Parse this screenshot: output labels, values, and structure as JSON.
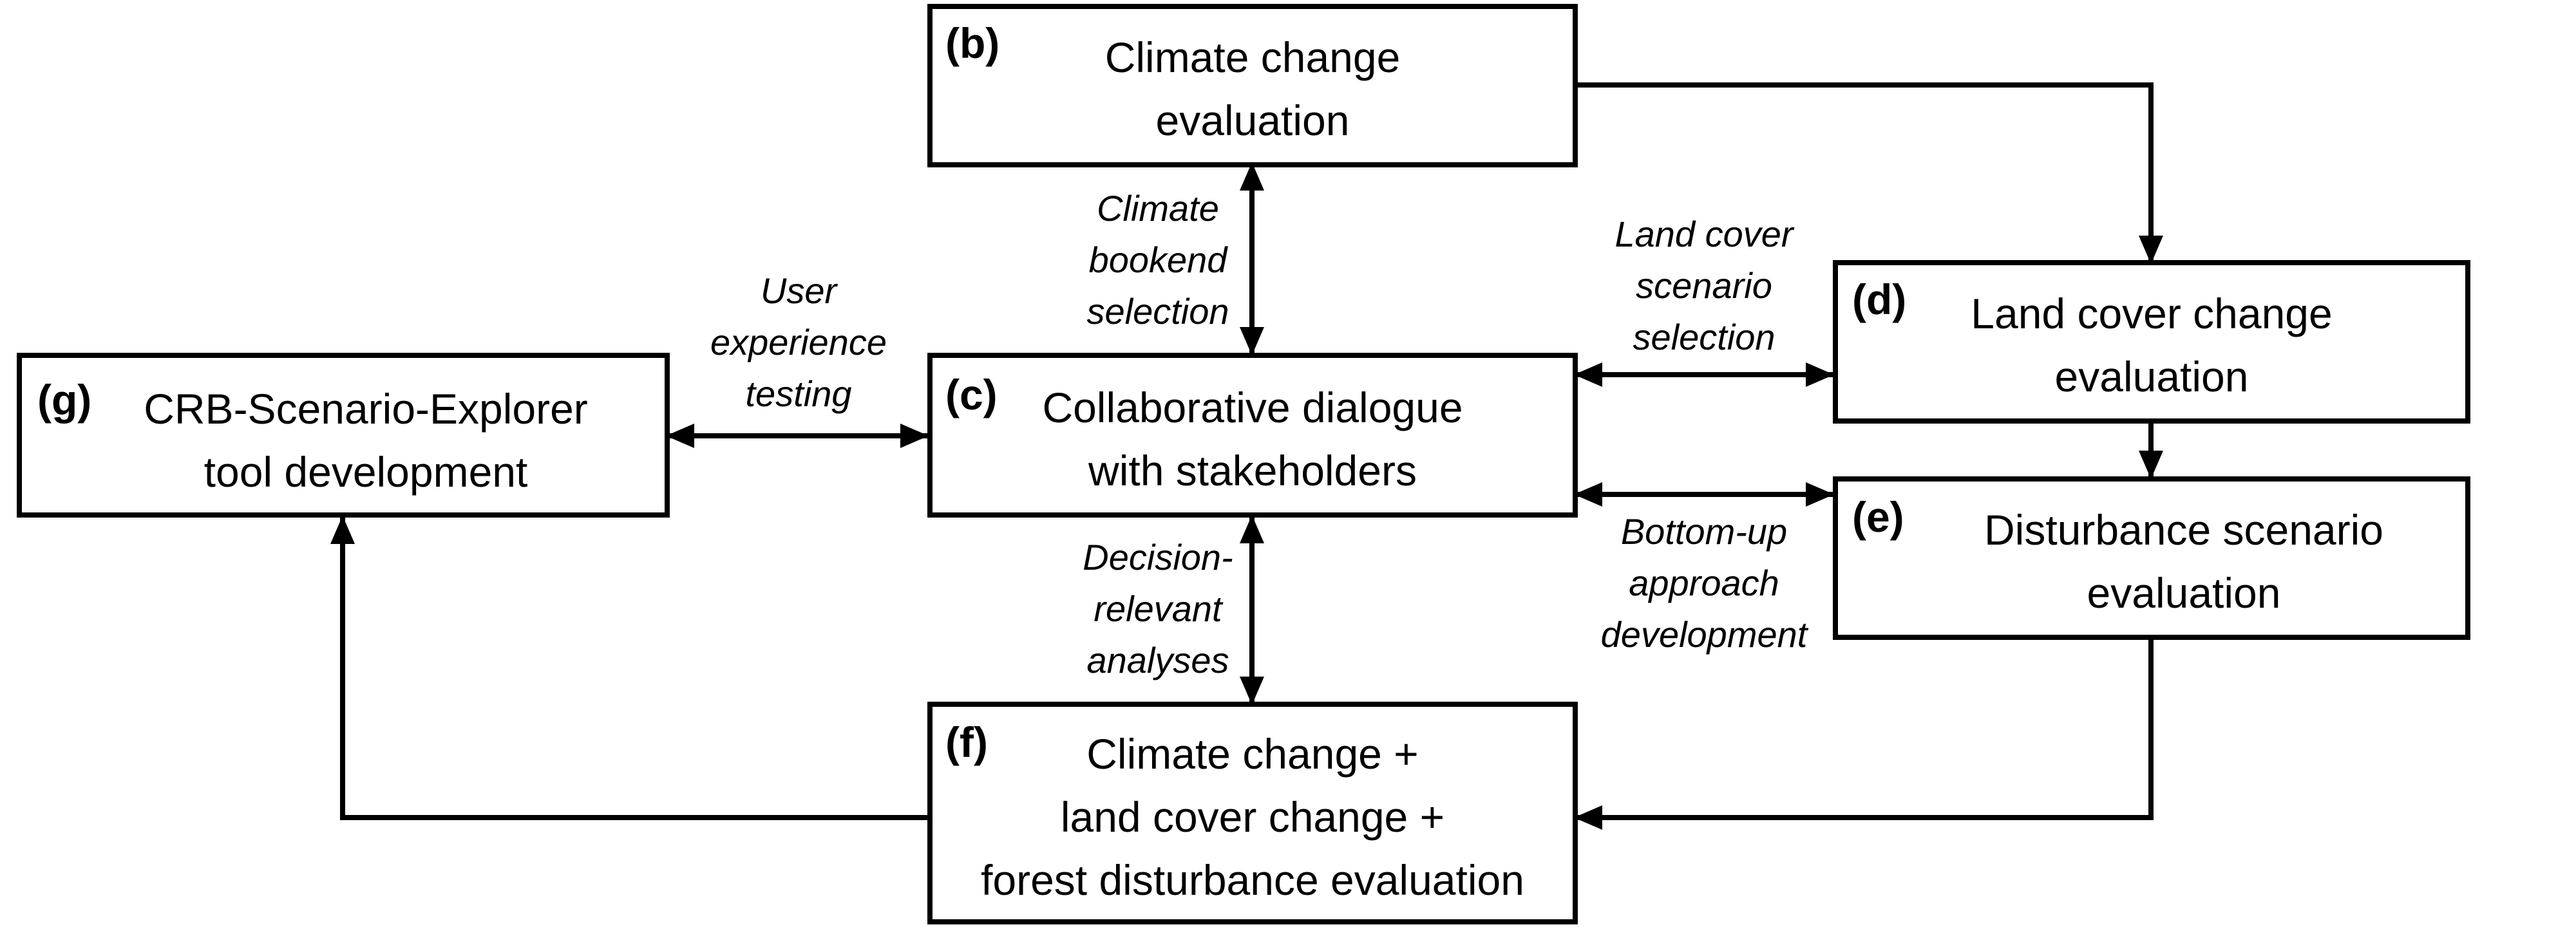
{
  "boxes": {
    "b": {
      "letter": "(b)",
      "lines": [
        "Climate change",
        "evaluation"
      ]
    },
    "c": {
      "letter": "(c)",
      "lines": [
        "Collaborative dialogue",
        "with stakeholders"
      ]
    },
    "d": {
      "letter": "(d)",
      "lines": [
        "Land cover change",
        "evaluation"
      ]
    },
    "e": {
      "letter": "(e)",
      "lines": [
        "Disturbance scenario",
        "evaluation"
      ]
    },
    "f": {
      "letter": "(f)",
      "lines": [
        "Climate change +",
        "land cover change +",
        "forest disturbance evaluation"
      ]
    },
    "g": {
      "letter": "(g)",
      "lines": [
        "CRB-Scenario-Explorer",
        "tool development"
      ]
    }
  },
  "edge_labels": {
    "b_c": [
      "Climate",
      "bookend",
      "selection"
    ],
    "c_f": [
      "Decision-",
      "relevant",
      "analyses"
    ],
    "c_g": [
      "User",
      "experience",
      "testing"
    ],
    "c_d": [
      "Land cover",
      "scenario",
      "selection"
    ],
    "c_e": [
      "Bottom-up",
      "approach",
      "development"
    ]
  }
}
